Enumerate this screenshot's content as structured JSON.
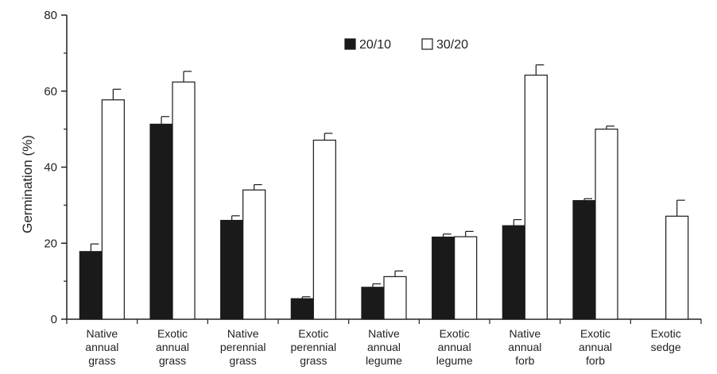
{
  "chart_data": {
    "type": "bar",
    "title": "",
    "xlabel": "",
    "ylabel": "Germination (%)",
    "ylim": [
      0,
      80
    ],
    "yticks": [
      0,
      20,
      40,
      60,
      80
    ],
    "grid": false,
    "legend_position": "top-center",
    "categories": [
      [
        "Native",
        "annual",
        "grass"
      ],
      [
        "Exotic",
        "annual",
        "grass"
      ],
      [
        "Native",
        "perennial",
        "grass"
      ],
      [
        "Exotic",
        "perennial",
        "grass"
      ],
      [
        "Native",
        "annual",
        "legume"
      ],
      [
        "Exotic",
        "annual",
        "legume"
      ],
      [
        "Native",
        "annual",
        "forb"
      ],
      [
        "Exotic",
        "annual",
        "forb"
      ],
      [
        "Exotic",
        "sedge"
      ]
    ],
    "series": [
      {
        "name": "20/10",
        "fill": "#1a1a1a",
        "values": [
          17.8,
          51.3,
          26.0,
          5.4,
          8.4,
          21.6,
          24.6,
          31.2,
          0
        ],
        "errors": [
          2.0,
          2.0,
          1.2,
          0.5,
          0.9,
          0.8,
          1.6,
          0.5,
          0
        ]
      },
      {
        "name": "30/20",
        "fill": "#ffffff",
        "values": [
          57.7,
          62.4,
          34.0,
          47.1,
          11.2,
          21.7,
          64.2,
          50.0,
          27.1
        ],
        "errors": [
          2.8,
          2.8,
          1.4,
          1.8,
          1.5,
          1.4,
          2.7,
          0.8,
          4.2
        ]
      }
    ]
  }
}
